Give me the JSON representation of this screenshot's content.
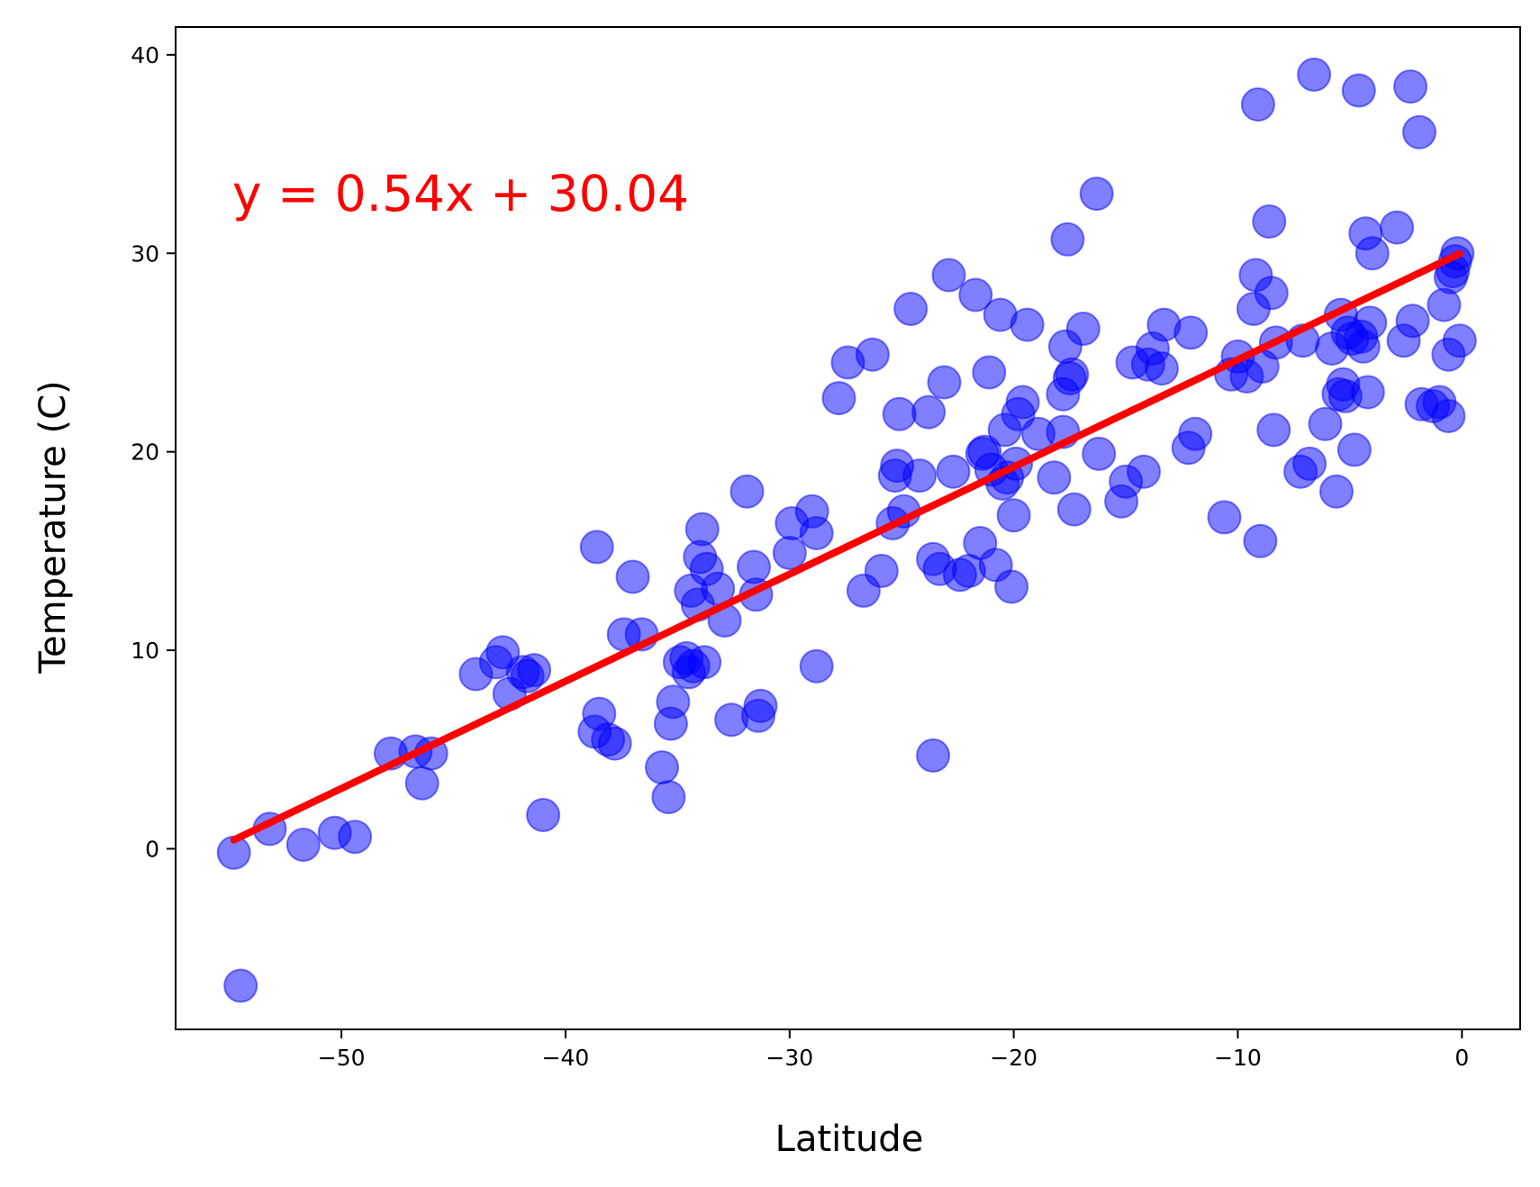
{
  "chart_data": {
    "type": "scatter",
    "title": "",
    "xlabel": "Latitude",
    "ylabel": "Temperature (C)",
    "xlim": [
      -57.4,
      2.6
    ],
    "ylim": [
      -9.1,
      41.4
    ],
    "xticks": [
      -50,
      -40,
      -30,
      -20,
      -10,
      0
    ],
    "yticks": [
      0,
      10,
      20,
      30,
      40
    ],
    "xtick_labels": [
      "−50",
      "−40",
      "−30",
      "−20",
      "−10",
      "0"
    ],
    "ytick_labels": [
      "0",
      "10",
      "20",
      "30",
      "40"
    ],
    "grid": false,
    "annotation": "y = 0.54x + 30.04",
    "regression": {
      "slope": 0.54,
      "intercept": 30.04,
      "x_range": [
        -54.8,
        -0.1
      ]
    },
    "colors": {
      "points": "#0000ff",
      "line": "#ff0000",
      "annotation": "#ff0000",
      "axes": "#000000"
    },
    "series": [
      {
        "x": [
          -54.8,
          -54.5,
          -53.2,
          -51.7,
          -50.3,
          -49.4,
          -47.8,
          -46.7,
          -46.4,
          -46.0,
          -44.0,
          -43.1,
          -42.8,
          -42.5,
          -41.9,
          -41.7,
          -41.4,
          -41.0,
          -38.7,
          -38.6,
          -38.5,
          -38.1,
          -37.8,
          -37.4,
          -37.0,
          -36.6,
          -35.7,
          -35.4,
          -35.3,
          -35.2,
          -34.9,
          -34.6,
          -34.5,
          -34.4,
          -34.3,
          -34.1,
          -34.0,
          -33.9,
          -33.8,
          -33.7,
          -33.2,
          -32.9,
          -32.6,
          -31.9,
          -31.6,
          -31.5,
          -31.4,
          -31.3,
          -30.0,
          -29.9,
          -29.0,
          -28.8,
          -28.8,
          -27.8,
          -27.4,
          -26.7,
          -26.3,
          -25.9,
          -25.4,
          -25.3,
          -25.2,
          -25.1,
          -24.9,
          -24.6,
          -24.2,
          -23.8,
          -23.6,
          -23.6,
          -23.3,
          -23.1,
          -22.9,
          -22.7,
          -22.4,
          -22.0,
          -21.7,
          -21.5,
          -21.4,
          -21.3,
          -21.1,
          -21.0,
          -20.8,
          -20.6,
          -20.5,
          -20.4,
          -20.3,
          -20.1,
          -20.0,
          -19.9,
          -19.8,
          -19.6,
          -19.4,
          -18.9,
          -18.2,
          -17.8,
          -17.8,
          -17.7,
          -17.6,
          -17.5,
          -17.4,
          -17.3,
          -16.9,
          -16.3,
          -16.2,
          -15.2,
          -15.0,
          -14.7,
          -14.2,
          -14.0,
          -13.8,
          -13.4,
          -13.3,
          -12.2,
          -12.1,
          -11.9,
          -10.6,
          -10.3,
          -10.0,
          -9.6,
          -9.3,
          -9.2,
          -9.1,
          -9.0,
          -8.9,
          -8.6,
          -8.5,
          -8.4,
          -8.3,
          -7.2,
          -7.1,
          -6.8,
          -6.6,
          -6.1,
          -5.8,
          -5.6,
          -5.5,
          -5.4,
          -5.3,
          -5.2,
          -5.1,
          -4.9,
          -4.8,
          -4.6,
          -4.5,
          -4.4,
          -4.3,
          -4.2,
          -4.1,
          -4.0,
          -2.9,
          -2.6,
          -2.3,
          -2.2,
          -1.9,
          -1.8,
          -1.3,
          -1.0,
          -0.8,
          -0.6,
          -0.6,
          -0.5,
          -0.4,
          -0.3,
          -0.2,
          -0.1
        ],
        "y": [
          -0.2,
          -6.9,
          1.0,
          0.2,
          0.8,
          0.6,
          4.8,
          4.9,
          3.3,
          4.8,
          8.8,
          9.4,
          9.9,
          7.8,
          8.9,
          8.7,
          9.0,
          1.7,
          5.9,
          15.2,
          6.8,
          5.5,
          5.3,
          10.8,
          13.7,
          10.8,
          4.1,
          2.6,
          6.3,
          7.4,
          9.4,
          9.6,
          8.9,
          13.0,
          9.2,
          12.3,
          14.7,
          16.1,
          9.4,
          14.1,
          13.1,
          11.5,
          6.5,
          18.0,
          14.2,
          12.8,
          6.7,
          7.2,
          14.9,
          16.4,
          17.0,
          15.9,
          9.2,
          22.7,
          24.5,
          13.0,
          24.9,
          14.0,
          16.4,
          18.8,
          19.3,
          21.9,
          17.0,
          27.2,
          18.8,
          22.0,
          4.7,
          14.6,
          14.1,
          23.5,
          28.9,
          19.0,
          13.8,
          14.0,
          27.9,
          15.4,
          19.9,
          20.0,
          24.0,
          19.1,
          14.3,
          26.9,
          18.4,
          21.1,
          18.7,
          13.2,
          16.8,
          19.4,
          21.9,
          22.5,
          26.4,
          20.9,
          18.7,
          22.9,
          21.0,
          25.3,
          30.7,
          23.7,
          23.9,
          17.1,
          26.2,
          33.0,
          19.9,
          17.5,
          18.5,
          24.5,
          19.0,
          24.4,
          25.2,
          24.2,
          26.4,
          20.2,
          26.0,
          20.9,
          16.7,
          23.9,
          24.8,
          23.8,
          27.2,
          28.9,
          37.5,
          15.5,
          24.3,
          31.6,
          28.0,
          21.1,
          25.5,
          19.0,
          25.6,
          19.4,
          39.0,
          21.4,
          25.2,
          18.0,
          22.9,
          26.9,
          23.4,
          22.8,
          26.0,
          25.7,
          20.1,
          38.2,
          25.8,
          25.3,
          31.0,
          23.0,
          26.5,
          30.0,
          31.3,
          25.6,
          38.4,
          26.6,
          36.1,
          22.4,
          22.3,
          22.5,
          27.4,
          24.9,
          21.8,
          28.8,
          29.1,
          29.6,
          30.0,
          25.6
        ]
      }
    ]
  }
}
